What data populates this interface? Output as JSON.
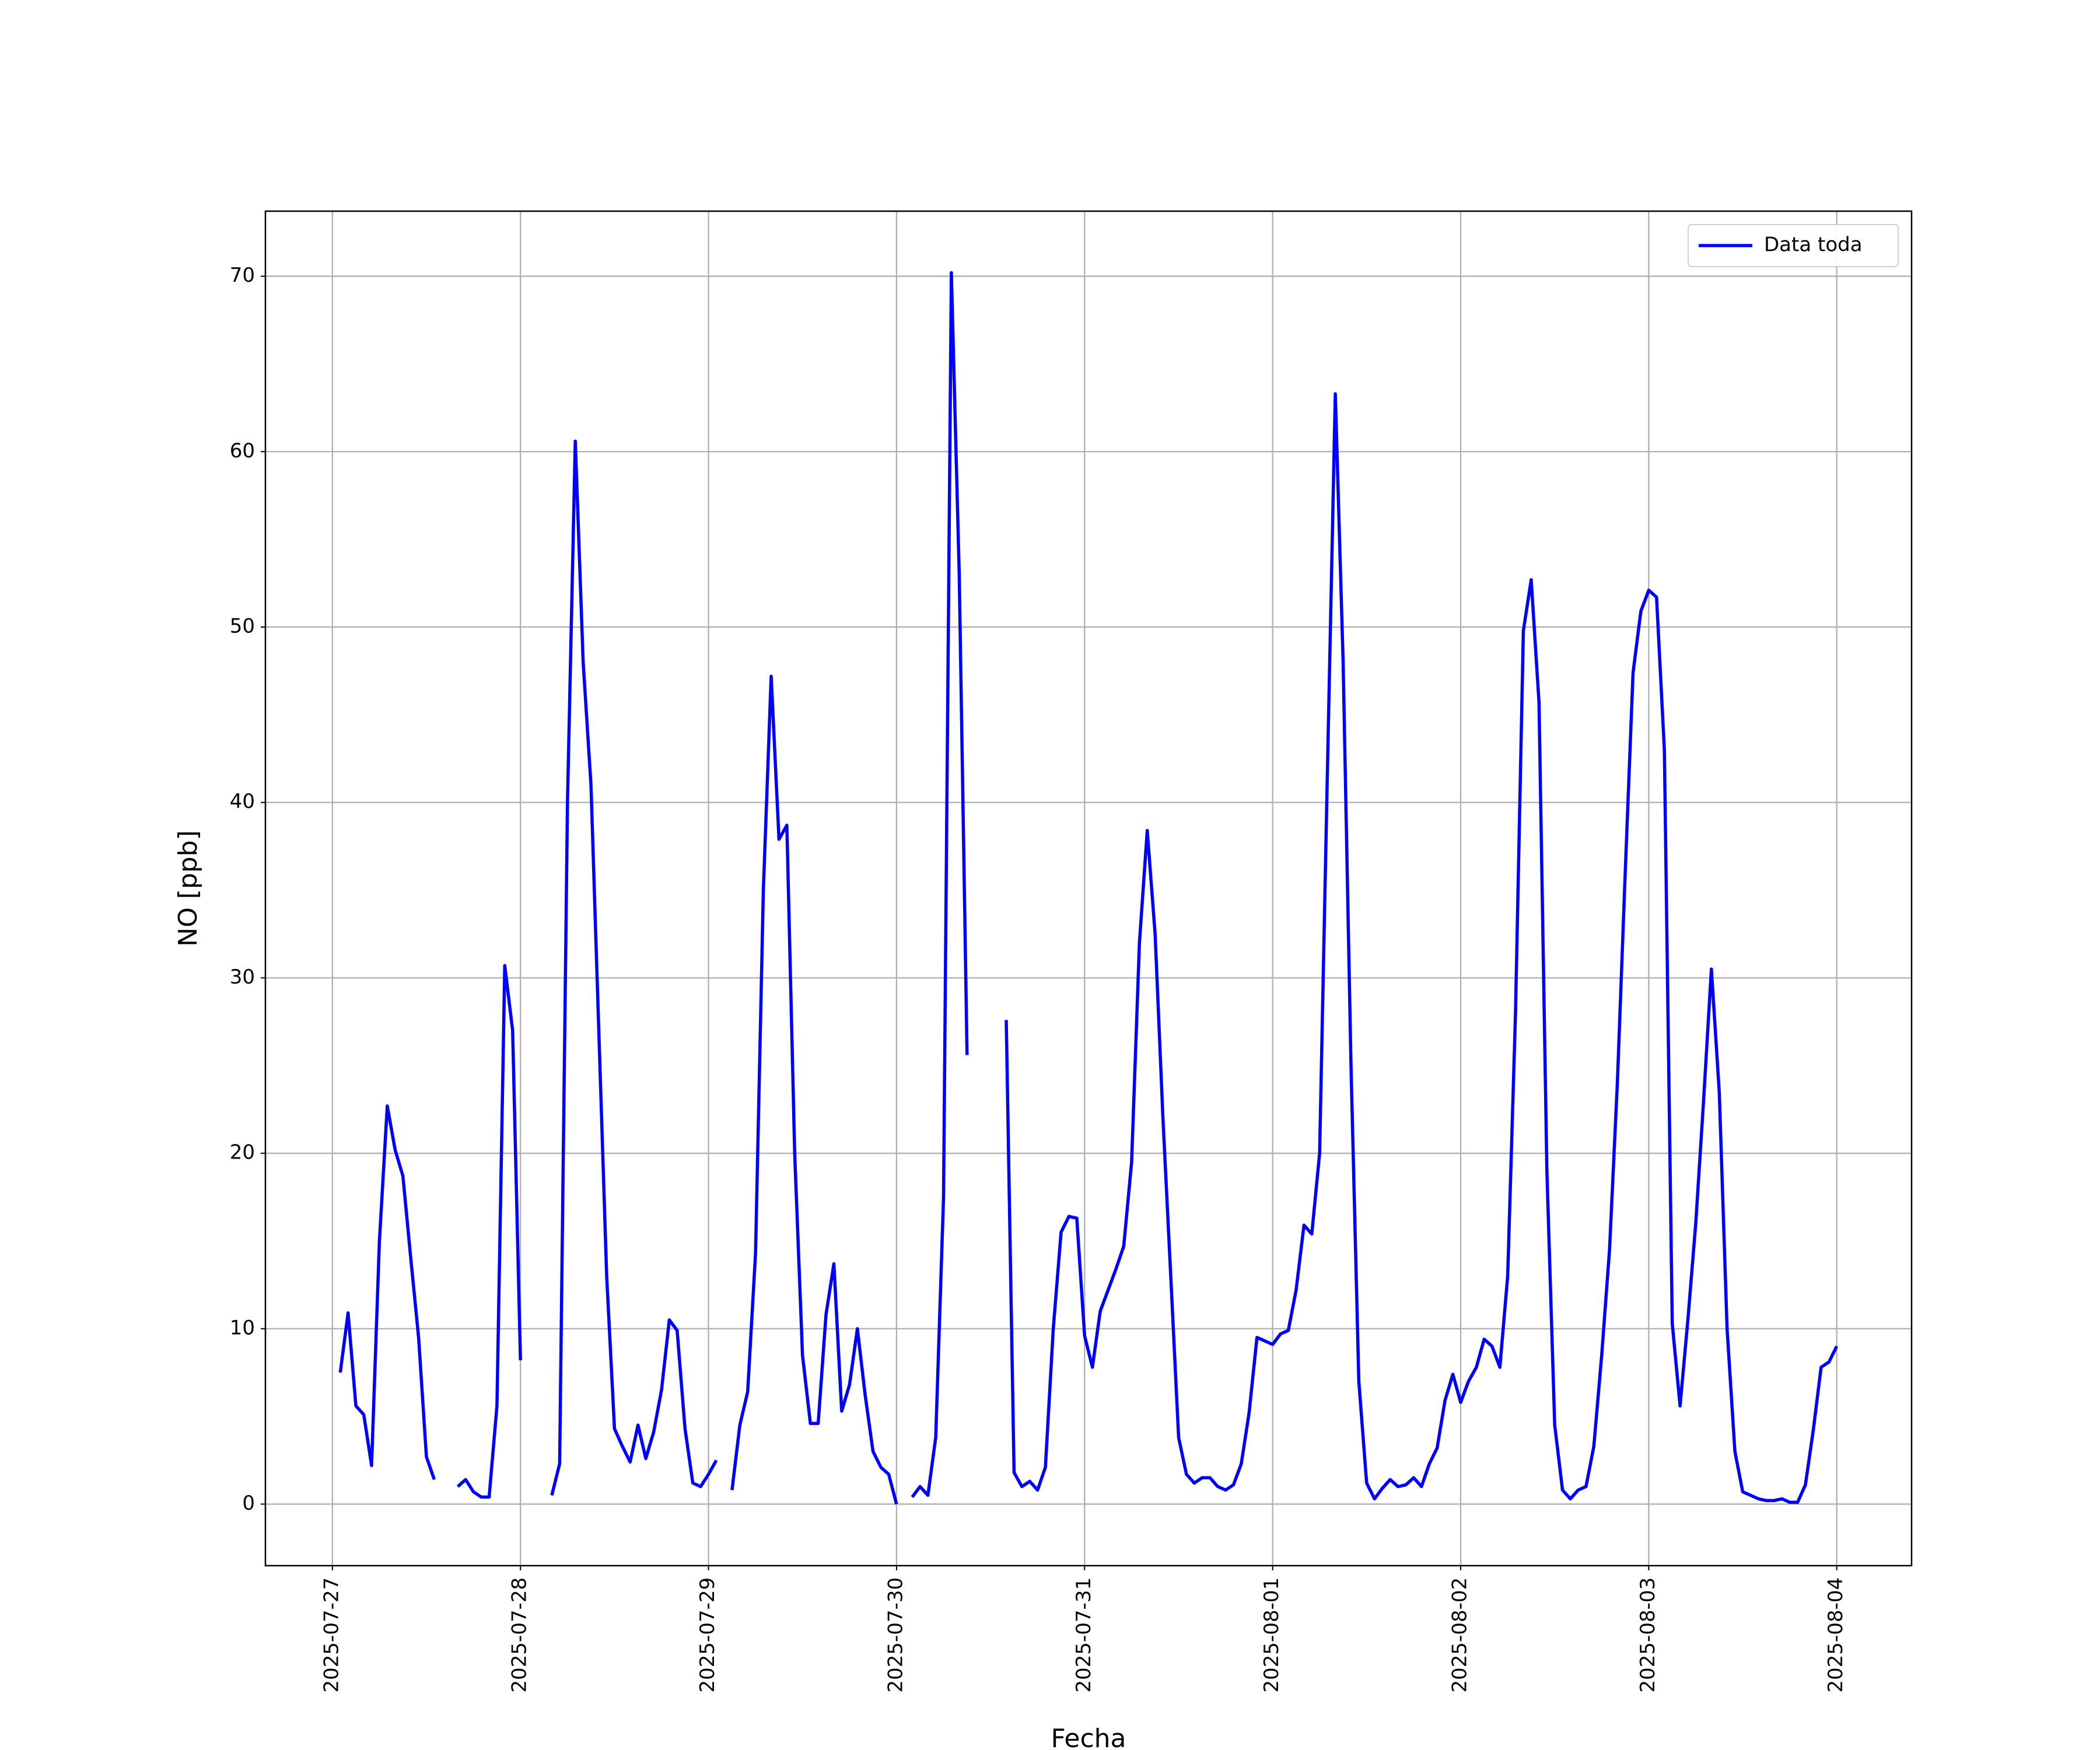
{
  "chart_data": {
    "type": "line",
    "x_label": "Fecha",
    "y_label": "NO [ppb]",
    "x": [
      "2025-07-27 01:00",
      "2025-07-27 02:00",
      "2025-07-27 03:00",
      "2025-07-27 04:00",
      "2025-07-27 05:00",
      "2025-07-27 06:00",
      "2025-07-27 07:00",
      "2025-07-27 08:00",
      "2025-07-27 09:00",
      "2025-07-27 10:00",
      "2025-07-27 11:00",
      "2025-07-27 12:00",
      "2025-07-27 13:00",
      "2025-07-27 14:00",
      "2025-07-27 15:00",
      "2025-07-27 16:00",
      "2025-07-27 17:00",
      "2025-07-27 18:00",
      "2025-07-27 19:00",
      "2025-07-27 20:00",
      "2025-07-27 21:00",
      "2025-07-27 22:00",
      "2025-07-27 23:00",
      "2025-07-28 00:00",
      "2025-07-28 01:00",
      "2025-07-28 02:00",
      "2025-07-28 03:00",
      "2025-07-28 04:00",
      "2025-07-28 05:00",
      "2025-07-28 06:00",
      "2025-07-28 07:00",
      "2025-07-28 08:00",
      "2025-07-28 09:00",
      "2025-07-28 10:00",
      "2025-07-28 11:00",
      "2025-07-28 12:00",
      "2025-07-28 13:00",
      "2025-07-28 14:00",
      "2025-07-28 15:00",
      "2025-07-28 16:00",
      "2025-07-28 17:00",
      "2025-07-28 18:00",
      "2025-07-28 19:00",
      "2025-07-28 20:00",
      "2025-07-28 21:00",
      "2025-07-28 22:00",
      "2025-07-28 23:00",
      "2025-07-29 00:00",
      "2025-07-29 01:00",
      "2025-07-29 02:00",
      "2025-07-29 03:00",
      "2025-07-29 04:00",
      "2025-07-29 05:00",
      "2025-07-29 06:00",
      "2025-07-29 07:00",
      "2025-07-29 08:00",
      "2025-07-29 09:00",
      "2025-07-29 10:00",
      "2025-07-29 11:00",
      "2025-07-29 12:00",
      "2025-07-29 13:00",
      "2025-07-29 14:00",
      "2025-07-29 15:00",
      "2025-07-29 16:00",
      "2025-07-29 17:00",
      "2025-07-29 18:00",
      "2025-07-29 19:00",
      "2025-07-29 20:00",
      "2025-07-29 21:00",
      "2025-07-29 22:00",
      "2025-07-29 23:00",
      "2025-07-30 00:00",
      "2025-07-30 01:00",
      "2025-07-30 02:00",
      "2025-07-30 03:00",
      "2025-07-30 04:00",
      "2025-07-30 05:00",
      "2025-07-30 06:00",
      "2025-07-30 07:00",
      "2025-07-30 08:00",
      "2025-07-30 09:00",
      "2025-07-30 10:00",
      "2025-07-30 11:00",
      "2025-07-30 12:00",
      "2025-07-30 13:00",
      "2025-07-30 14:00",
      "2025-07-30 15:00",
      "2025-07-30 16:00",
      "2025-07-30 17:00",
      "2025-07-30 18:00",
      "2025-07-30 19:00",
      "2025-07-30 20:00",
      "2025-07-30 21:00",
      "2025-07-30 22:00",
      "2025-07-30 23:00",
      "2025-07-31 00:00",
      "2025-07-31 01:00",
      "2025-07-31 02:00",
      "2025-07-31 03:00",
      "2025-07-31 04:00",
      "2025-07-31 05:00",
      "2025-07-31 06:00",
      "2025-07-31 07:00",
      "2025-07-31 08:00",
      "2025-07-31 09:00",
      "2025-07-31 10:00",
      "2025-07-31 11:00",
      "2025-07-31 12:00",
      "2025-07-31 13:00",
      "2025-07-31 14:00",
      "2025-07-31 15:00",
      "2025-07-31 16:00",
      "2025-07-31 17:00",
      "2025-07-31 18:00",
      "2025-07-31 19:00",
      "2025-07-31 20:00",
      "2025-07-31 21:00",
      "2025-07-31 22:00",
      "2025-07-31 23:00",
      "2025-08-01 00:00",
      "2025-08-01 01:00",
      "2025-08-01 02:00",
      "2025-08-01 03:00",
      "2025-08-01 04:00",
      "2025-08-01 05:00",
      "2025-08-01 06:00",
      "2025-08-01 07:00",
      "2025-08-01 08:00",
      "2025-08-01 09:00",
      "2025-08-01 10:00",
      "2025-08-01 11:00",
      "2025-08-01 12:00",
      "2025-08-01 13:00",
      "2025-08-01 14:00",
      "2025-08-01 15:00",
      "2025-08-01 16:00",
      "2025-08-01 17:00",
      "2025-08-01 18:00",
      "2025-08-01 19:00",
      "2025-08-01 20:00",
      "2025-08-01 21:00",
      "2025-08-01 22:00",
      "2025-08-01 23:00",
      "2025-08-02 00:00",
      "2025-08-02 01:00",
      "2025-08-02 02:00",
      "2025-08-02 03:00",
      "2025-08-02 04:00",
      "2025-08-02 05:00",
      "2025-08-02 06:00",
      "2025-08-02 07:00",
      "2025-08-02 08:00",
      "2025-08-02 09:00",
      "2025-08-02 10:00",
      "2025-08-02 11:00",
      "2025-08-02 12:00",
      "2025-08-02 13:00",
      "2025-08-02 14:00",
      "2025-08-02 15:00",
      "2025-08-02 16:00",
      "2025-08-02 17:00",
      "2025-08-02 18:00",
      "2025-08-02 19:00",
      "2025-08-02 20:00",
      "2025-08-02 21:00",
      "2025-08-02 22:00",
      "2025-08-02 23:00",
      "2025-08-03 00:00",
      "2025-08-03 01:00",
      "2025-08-03 02:00",
      "2025-08-03 03:00",
      "2025-08-03 04:00",
      "2025-08-03 05:00",
      "2025-08-03 06:00",
      "2025-08-03 07:00",
      "2025-08-03 08:00",
      "2025-08-03 09:00",
      "2025-08-03 10:00",
      "2025-08-03 11:00",
      "2025-08-03 12:00",
      "2025-08-03 13:00",
      "2025-08-03 14:00",
      "2025-08-03 15:00",
      "2025-08-03 16:00",
      "2025-08-03 17:00",
      "2025-08-03 18:00",
      "2025-08-03 19:00",
      "2025-08-03 20:00",
      "2025-08-03 21:00",
      "2025-08-03 22:00",
      "2025-08-03 23:00",
      "2025-08-04 00:00"
    ],
    "series": [
      {
        "name": "Data toda",
        "color": "#0000ff",
        "values": [
          7.5,
          10.9,
          5.6,
          5.1,
          2.2,
          15,
          22.7,
          20.2,
          18.7,
          14,
          9.5,
          2.7,
          1.4,
          null,
          null,
          1.0,
          1.4,
          0.7,
          0.4,
          0.4,
          5.6,
          30.7,
          27,
          8.2,
          null,
          null,
          null,
          0.5,
          2.3,
          40,
          60.6,
          48,
          41,
          27,
          13,
          4.3,
          3.3,
          2.4,
          4.5,
          2.6,
          4.1,
          6.5,
          10.5,
          9.9,
          4.3,
          1.2,
          1.0,
          1.7,
          2.5,
          null,
          0.8,
          4.5,
          6.4,
          14.3,
          35,
          47.2,
          37.9,
          38.7,
          20,
          8.5,
          4.6,
          4.6,
          10.8,
          13.7,
          5.3,
          6.8,
          10,
          6.2,
          3,
          2.1,
          1.7,
          0.0,
          null,
          0.4,
          1.0,
          0.5,
          3.8,
          17.5,
          70.2,
          53,
          25.6,
          null,
          null,
          null,
          null,
          27.6,
          1.8,
          1.0,
          1.3,
          0.8,
          2.1,
          10,
          15.5,
          16.4,
          16.3,
          9.6,
          7.8,
          11,
          12.2,
          13.4,
          14.7,
          19.5,
          32,
          38.4,
          32.5,
          22,
          13,
          3.8,
          1.7,
          1.2,
          1.5,
          1.5,
          1.0,
          0.8,
          1.1,
          2.3,
          5.2,
          9.5,
          9.3,
          9.1,
          9.7,
          9.9,
          12.2,
          15.9,
          15.4,
          20,
          42,
          63.3,
          48,
          25,
          7,
          1.2,
          0.3,
          0.9,
          1.4,
          1.0,
          1.1,
          1.5,
          1.0,
          2.3,
          3.2,
          5.9,
          7.4,
          5.8,
          7.0,
          7.8,
          9.4,
          9.0,
          7.8,
          13,
          28,
          49.8,
          52.7,
          45.7,
          19,
          4.5,
          0.8,
          0.3,
          0.8,
          1.0,
          3.3,
          8.5,
          14.5,
          24,
          36,
          47.4,
          50.9,
          52.1,
          51.7,
          43,
          10.3,
          5.6,
          10.5,
          16,
          23,
          30.5,
          23.5,
          10,
          3,
          0.7,
          0.5,
          0.3,
          0.2,
          0.2,
          0.3,
          0.1,
          0.1,
          1.1,
          4.2,
          7.8,
          8.1,
          9.0
        ]
      }
    ],
    "xlim": [
      "2025-07-26 15:27",
      "2025-08-04 09:33"
    ],
    "xticks": [
      "2025-07-27",
      "2025-07-28",
      "2025-07-29",
      "2025-07-30",
      "2025-07-31",
      "2025-08-01",
      "2025-08-02",
      "2025-08-03",
      "2025-08-04"
    ],
    "ylim": [
      -3.51,
      73.71
    ],
    "yticks": [
      0,
      10,
      20,
      30,
      40,
      50,
      60,
      70
    ],
    "grid": true,
    "legend": "upper right"
  }
}
